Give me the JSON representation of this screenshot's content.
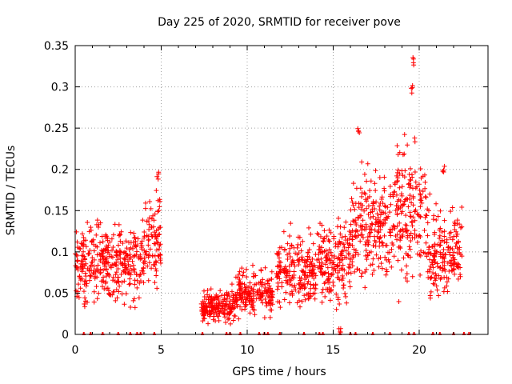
{
  "chart_data": {
    "type": "scatter",
    "title": "Day 225 of 2020, SRMTID for receiver pove",
    "xlabel": "GPS time / hours",
    "ylabel": "SRMTID / TECUs",
    "xlim": [
      0,
      24
    ],
    "ylim": [
      0,
      0.35
    ],
    "xticks": [
      0,
      5,
      10,
      15,
      20
    ],
    "xtick_labels": [
      "0",
      "5",
      "10",
      "15",
      "20"
    ],
    "yticks": [
      0,
      0.05,
      0.1,
      0.15,
      0.2,
      0.25,
      0.3,
      0.35
    ],
    "ytick_labels": [
      "0",
      "0.05",
      "0.1",
      "0.15",
      "0.2",
      "0.25",
      "0.3",
      "0.35"
    ],
    "grid": true,
    "marker": "+",
    "color": "#ff0000",
    "clusters": [
      {
        "x_start": 0.0,
        "x_end": 4.0,
        "y_center": 0.085,
        "y_spread": 0.028,
        "peak": 0.14
      },
      {
        "x_start": 4.0,
        "x_end": 5.0,
        "y_center": 0.115,
        "y_spread": 0.035,
        "peak": 0.2
      },
      {
        "x_start": 7.3,
        "x_end": 9.3,
        "y_center": 0.035,
        "y_spread": 0.012,
        "peak": 0.065
      },
      {
        "x_start": 9.3,
        "x_end": 11.5,
        "y_center": 0.05,
        "y_spread": 0.017,
        "peak": 0.09
      },
      {
        "x_start": 11.7,
        "x_end": 14.0,
        "y_center": 0.075,
        "y_spread": 0.025,
        "peak": 0.15
      },
      {
        "x_start": 14.0,
        "x_end": 16.0,
        "y_center": 0.09,
        "y_spread": 0.028,
        "peak": 0.15
      },
      {
        "x_start": 16.0,
        "x_end": 18.5,
        "y_center": 0.13,
        "y_spread": 0.04,
        "peak": 0.25
      },
      {
        "x_start": 18.5,
        "x_end": 20.5,
        "y_center": 0.15,
        "y_spread": 0.05,
        "peak": 0.34
      },
      {
        "x_start": 20.5,
        "x_end": 22.5,
        "y_center": 0.1,
        "y_spread": 0.03,
        "peak": 0.21
      }
    ],
    "peaks": [
      {
        "x": 4.8,
        "y": 0.2
      },
      {
        "x": 16.5,
        "y": 0.25
      },
      {
        "x": 19.7,
        "y": 0.34
      },
      {
        "x": 19.6,
        "y": 0.305
      },
      {
        "x": 21.4,
        "y": 0.21
      },
      {
        "x": 15.4,
        "y": 0.015
      }
    ],
    "baseline_markers_x": [
      0.5,
      0.9,
      1.6,
      2.5,
      3.2,
      3.6,
      3.8,
      4.6,
      7.4,
      8.8,
      9.0,
      9.6,
      10.7,
      11.0,
      11.2,
      11.9,
      13.3,
      14.2,
      14.4,
      15.4,
      16.0,
      16.3,
      17.3,
      18.3,
      19.4,
      19.7,
      20.8,
      21.2,
      22.0,
      22.6,
      22.9
    ]
  }
}
